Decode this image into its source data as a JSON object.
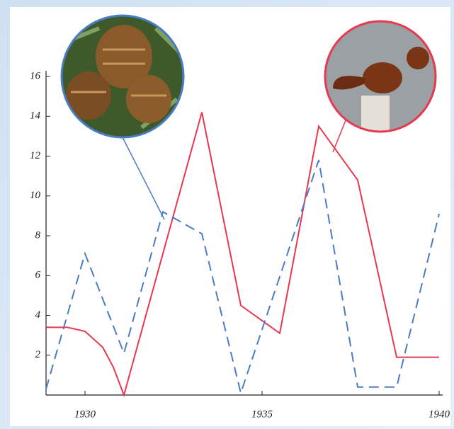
{
  "chart_data": {
    "type": "line",
    "xlim": [
      1928.9,
      1940.1
    ],
    "ylim": [
      0,
      16
    ],
    "xticks": [
      1930,
      1935,
      1940
    ],
    "yticks": [
      2,
      4,
      6,
      8,
      10,
      12,
      14,
      16
    ],
    "series": [
      {
        "color": "#e8384f",
        "dash": false,
        "x": [
          1928.9,
          1929.5,
          1930,
          1930.5,
          1930.8,
          1931.1,
          1933.3,
          1934.4,
          1935.5,
          1936.6,
          1937.7,
          1938.8,
          1940
        ],
        "values": [
          3.4,
          3.4,
          3.2,
          2.4,
          1.4,
          0,
          14.2,
          4.5,
          3.1,
          13.5,
          10.8,
          1.9,
          1.9
        ]
      },
      {
        "color": "#4a7cc4",
        "dash": true,
        "x": [
          1928.9,
          1930,
          1931.1,
          1932.2,
          1933.3,
          1934.4,
          1936.6,
          1937.7,
          1938.8,
          1940
        ],
        "values": [
          0.3,
          7.1,
          2.1,
          9.2,
          8.1,
          0.1,
          11.8,
          0.4,
          0.4,
          9.1
        ]
      }
    ]
  }
}
